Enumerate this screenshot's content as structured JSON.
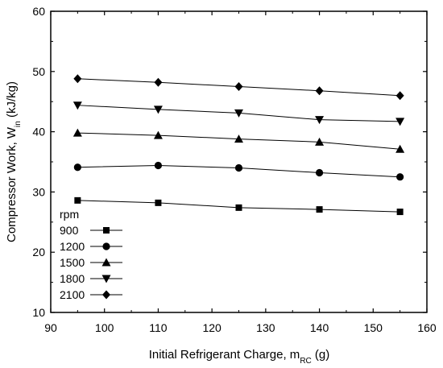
{
  "chart_data": {
    "type": "line",
    "ylabel": "Compressor Work, W",
    "ylabel_sub": "in",
    "ylabel_unit": " (kJ/kg)",
    "xlabel": "Initial Refrigerant Charge, m",
    "xlabel_sub": "RC",
    "xlabel_unit": " (g)",
    "xlim": [
      90,
      160
    ],
    "ylim": [
      10,
      60
    ],
    "xticks": [
      90,
      100,
      110,
      120,
      130,
      140,
      150,
      160
    ],
    "yticks": [
      10,
      20,
      30,
      40,
      50,
      60
    ],
    "grid": false,
    "legend_title": "rpm",
    "legend_position": "bottom-left",
    "x": [
      95,
      110,
      125,
      140,
      155
    ],
    "series": [
      {
        "name": "900",
        "marker": "square",
        "values": [
          28.6,
          28.2,
          27.4,
          27.1,
          26.7
        ]
      },
      {
        "name": "1200",
        "marker": "circle",
        "values": [
          34.1,
          34.4,
          34.0,
          33.2,
          32.5
        ]
      },
      {
        "name": "1500",
        "marker": "triangle-up",
        "values": [
          39.8,
          39.4,
          38.8,
          38.3,
          37.1
        ]
      },
      {
        "name": "1800",
        "marker": "triangle-down",
        "values": [
          44.4,
          43.7,
          43.1,
          42.0,
          41.7
        ]
      },
      {
        "name": "2100",
        "marker": "diamond",
        "values": [
          48.8,
          48.2,
          47.5,
          46.8,
          46.0
        ]
      }
    ],
    "colors": {
      "line": "#000000",
      "marker": "#000000"
    }
  }
}
